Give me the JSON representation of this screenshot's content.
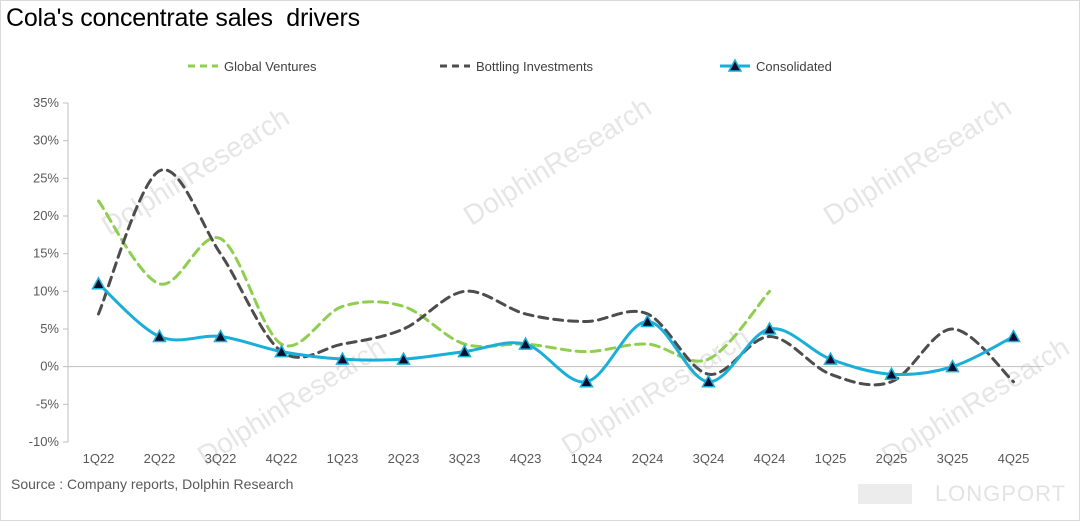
{
  "title": "Cola's concentrate sales  drivers",
  "source": "Source : Company reports, Dolphin Research",
  "watermark": "DolphinResearch",
  "brand": "LONGPORT",
  "chart_data": {
    "type": "line",
    "smooth": true,
    "categories": [
      "1Q22",
      "2Q22",
      "3Q22",
      "4Q22",
      "1Q23",
      "2Q23",
      "3Q23",
      "4Q23",
      "1Q24",
      "2Q24",
      "3Q24",
      "4Q24",
      "1Q25",
      "2Q25",
      "3Q25",
      "4Q25"
    ],
    "ylim": [
      -10,
      35
    ],
    "ytick_step": 5,
    "ytick_labels": [
      "-10%",
      "-5%",
      "0%",
      "5%",
      "10%",
      "15%",
      "20%",
      "25%",
      "30%",
      "35%"
    ],
    "legend_position": "top",
    "series": [
      {
        "name": "Global Ventures",
        "style": "dashed",
        "color": "#8fce4f",
        "marker": "none",
        "values": [
          22,
          11,
          17,
          3,
          8,
          8,
          3,
          3,
          2,
          3,
          1,
          10,
          null,
          null,
          null,
          null
        ]
      },
      {
        "name": "Bottling Investments",
        "style": "dashed",
        "color": "#4d4d4d",
        "marker": "none",
        "values": [
          7,
          26,
          15,
          2,
          3,
          5,
          10,
          7,
          6,
          7,
          -1,
          4,
          -1,
          -2,
          5,
          -2
        ]
      },
      {
        "name": "Consolidated",
        "style": "solid",
        "color": "#1aafd9",
        "marker": "triangle",
        "values": [
          11,
          4,
          4,
          2,
          1,
          1,
          2,
          3,
          -2,
          6,
          -2,
          5,
          1,
          -1,
          0,
          4
        ]
      }
    ]
  }
}
